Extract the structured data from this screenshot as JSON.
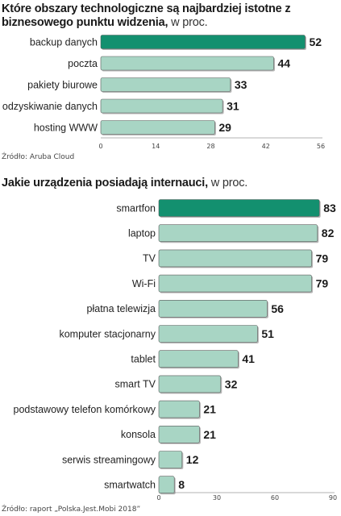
{
  "colors": {
    "highlight": "#13906f",
    "bar": "#a8d5c4",
    "bar_outline": "#5c5c5c",
    "axis": "#9a9a9a"
  },
  "chart_data": [
    {
      "type": "bar",
      "orientation": "horizontal",
      "title_bold": "Które obszary technologiczne są najbardziej istotne z biznesowego punktu widzenia,",
      "title_unit": "w proc.",
      "categories": [
        "backup danych",
        "poczta",
        "pakiety biurowe",
        "odzyskiwanie danych",
        "hosting WWW"
      ],
      "values": [
        52,
        44,
        33,
        31,
        29
      ],
      "value_labels": [
        "52",
        "44",
        "33",
        "31",
        "29"
      ],
      "highlight_index": 0,
      "xlim": [
        0,
        56
      ],
      "x_ticks": [
        "0",
        "14",
        "28",
        "42",
        "56"
      ],
      "source": "Źródło: Aruba Cloud"
    },
    {
      "type": "bar",
      "orientation": "horizontal",
      "title_bold": "Jakie urządzenia posiadają internauci,",
      "title_unit": "w proc.",
      "categories": [
        "smartfon",
        "laptop",
        "TV",
        "Wi-Fi",
        "płatna telewizja",
        "komputer stacjonarny",
        "tablet",
        "smart TV",
        "podstawowy telefon komórkowy",
        "konsola",
        "serwis streamingowy",
        "smartwatch"
      ],
      "values": [
        83,
        82,
        79,
        79,
        56,
        51,
        41,
        32,
        21,
        21,
        12,
        8
      ],
      "value_labels": [
        "83",
        "82",
        "79",
        "79",
        "56",
        "51",
        "41",
        "32",
        "21",
        "21",
        "12",
        "8"
      ],
      "highlight_index": 0,
      "xlim": [
        0,
        90
      ],
      "x_ticks": [
        "0",
        "30",
        "60",
        "90"
      ],
      "source": "Źródło: raport „Polska.Jest.Mobi 2018”"
    }
  ]
}
